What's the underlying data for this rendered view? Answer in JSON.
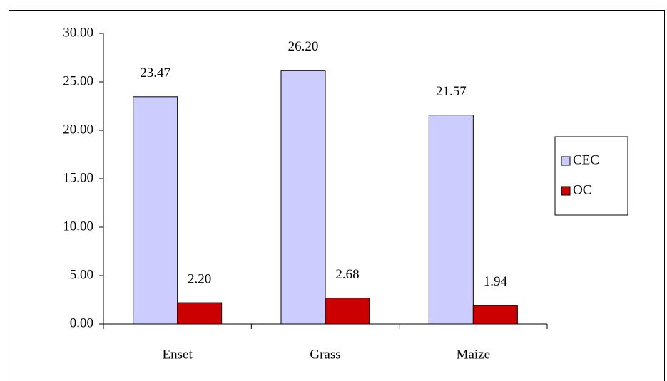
{
  "chart_data": {
    "type": "bar",
    "categories": [
      "Enset",
      "Grass",
      "Maize"
    ],
    "series": [
      {
        "name": "CEC",
        "color": "#ccccff",
        "values": [
          23.47,
          26.2,
          21.57
        ],
        "value_labels": [
          "23.47",
          "26.20",
          "21.57"
        ]
      },
      {
        "name": "OC",
        "color": "#cc0000",
        "values": [
          2.2,
          2.68,
          1.94
        ],
        "value_labels": [
          "2.20",
          "2.68",
          "1.94"
        ]
      }
    ],
    "ylim": [
      0,
      30
    ],
    "yticks": [
      {
        "value": 0,
        "label": "0.00"
      },
      {
        "value": 5,
        "label": "5.00"
      },
      {
        "value": 10,
        "label": "10.00"
      },
      {
        "value": 15,
        "label": "15.00"
      },
      {
        "value": 20,
        "label": "20.00"
      },
      {
        "value": 25,
        "label": "25.00"
      },
      {
        "value": 30,
        "label": "30.00"
      }
    ],
    "grid": false,
    "legend": "right"
  }
}
